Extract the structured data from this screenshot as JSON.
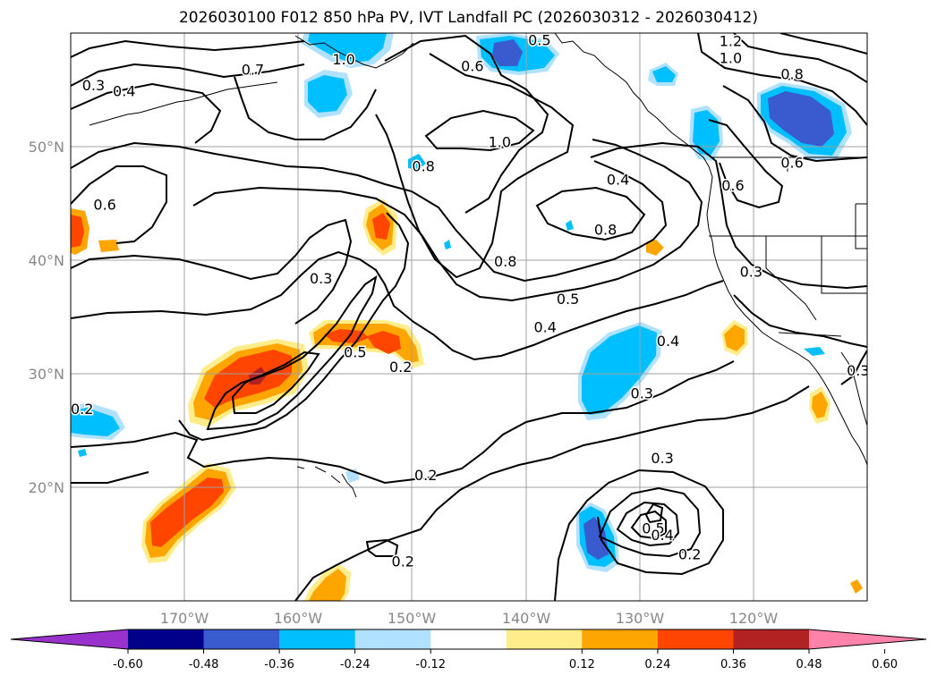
{
  "title": "2026030100 F012 850 hPa PV, IVT Landfall PC (2026030312 - 2026030412)",
  "map": {
    "lat_labels": [
      "50°N",
      "40°N",
      "30°N",
      "20°N"
    ],
    "lon_labels": [
      "170°W",
      "160°W",
      "150°W",
      "140°W",
      "130°W",
      "120°W"
    ],
    "extent": {
      "lon_min": -180,
      "lon_max": -110,
      "lat_min": 10,
      "lat_max": 60
    },
    "grid": true
  },
  "colorbar": {
    "ticks": [
      "-0.60",
      "-0.48",
      "-0.36",
      "-0.24",
      "-0.12",
      "0.12",
      "0.24",
      "0.36",
      "0.48",
      "0.60"
    ],
    "colors": {
      "under": "#9932cc",
      "bins": [
        "#00008b",
        "#3a5bd0",
        "#00bfff",
        "#b0e2ff",
        "#ffffff",
        "#ffec8b",
        "#ffa500",
        "#ff4500",
        "#b22222"
      ],
      "over": "#ff82ab"
    }
  },
  "contour_labels": [
    {
      "text": "0.3",
      "lon": -158,
      "lat": 38.3
    },
    {
      "text": "0.5",
      "lon": -155,
      "lat": 31.8
    },
    {
      "text": "0.2",
      "lon": -151,
      "lat": 30.5
    },
    {
      "text": "0.2",
      "lon": -179,
      "lat": 26.8
    },
    {
      "text": "0.2",
      "lon": -148.8,
      "lat": 21
    },
    {
      "text": "0.2",
      "lon": -150.8,
      "lat": 13.4
    },
    {
      "text": "0.6",
      "lon": -177,
      "lat": 44.8
    },
    {
      "text": "0.7",
      "lon": -164,
      "lat": 56.7
    },
    {
      "text": "1.0",
      "lon": -156,
      "lat": 57.6
    },
    {
      "text": "0.4",
      "lon": -175.3,
      "lat": 54.8
    },
    {
      "text": "0.3",
      "lon": -178,
      "lat": 55.3
    },
    {
      "text": "0.6",
      "lon": -144.7,
      "lat": 57.0
    },
    {
      "text": "0.5",
      "lon": -138.8,
      "lat": 59.3
    },
    {
      "text": "1.0",
      "lon": -142.3,
      "lat": 50.3
    },
    {
      "text": "0.8",
      "lon": -149,
      "lat": 48.2
    },
    {
      "text": "0.8",
      "lon": -141.8,
      "lat": 39.8
    },
    {
      "text": "0.8",
      "lon": -133,
      "lat": 42.6
    },
    {
      "text": "0.4",
      "lon": -131.9,
      "lat": 47.0
    },
    {
      "text": "0.5",
      "lon": -136.3,
      "lat": 36.5
    },
    {
      "text": "0.4",
      "lon": -138.3,
      "lat": 34.0
    },
    {
      "text": "0.4",
      "lon": -127.5,
      "lat": 32.8
    },
    {
      "text": "0.3",
      "lon": -129.8,
      "lat": 28.2
    },
    {
      "text": "0.3",
      "lon": -128,
      "lat": 22.5
    },
    {
      "text": "0.5",
      "lon": -128.8,
      "lat": 16.3
    },
    {
      "text": "0.4",
      "lon": -128,
      "lat": 15.7
    },
    {
      "text": "0.2",
      "lon": -125.6,
      "lat": 14
    },
    {
      "text": "1.2",
      "lon": -122,
      "lat": 59.2
    },
    {
      "text": "1.0",
      "lon": -122,
      "lat": 57.7
    },
    {
      "text": "0.8",
      "lon": -116.6,
      "lat": 56.3
    },
    {
      "text": "0.6",
      "lon": -116.6,
      "lat": 48.5
    },
    {
      "text": "0.6",
      "lon": -121.8,
      "lat": 46.5
    },
    {
      "text": "0.3",
      "lon": -120.2,
      "lat": 38.9
    },
    {
      "text": "0.3",
      "lon": -110.8,
      "lat": 30.2
    }
  ]
}
